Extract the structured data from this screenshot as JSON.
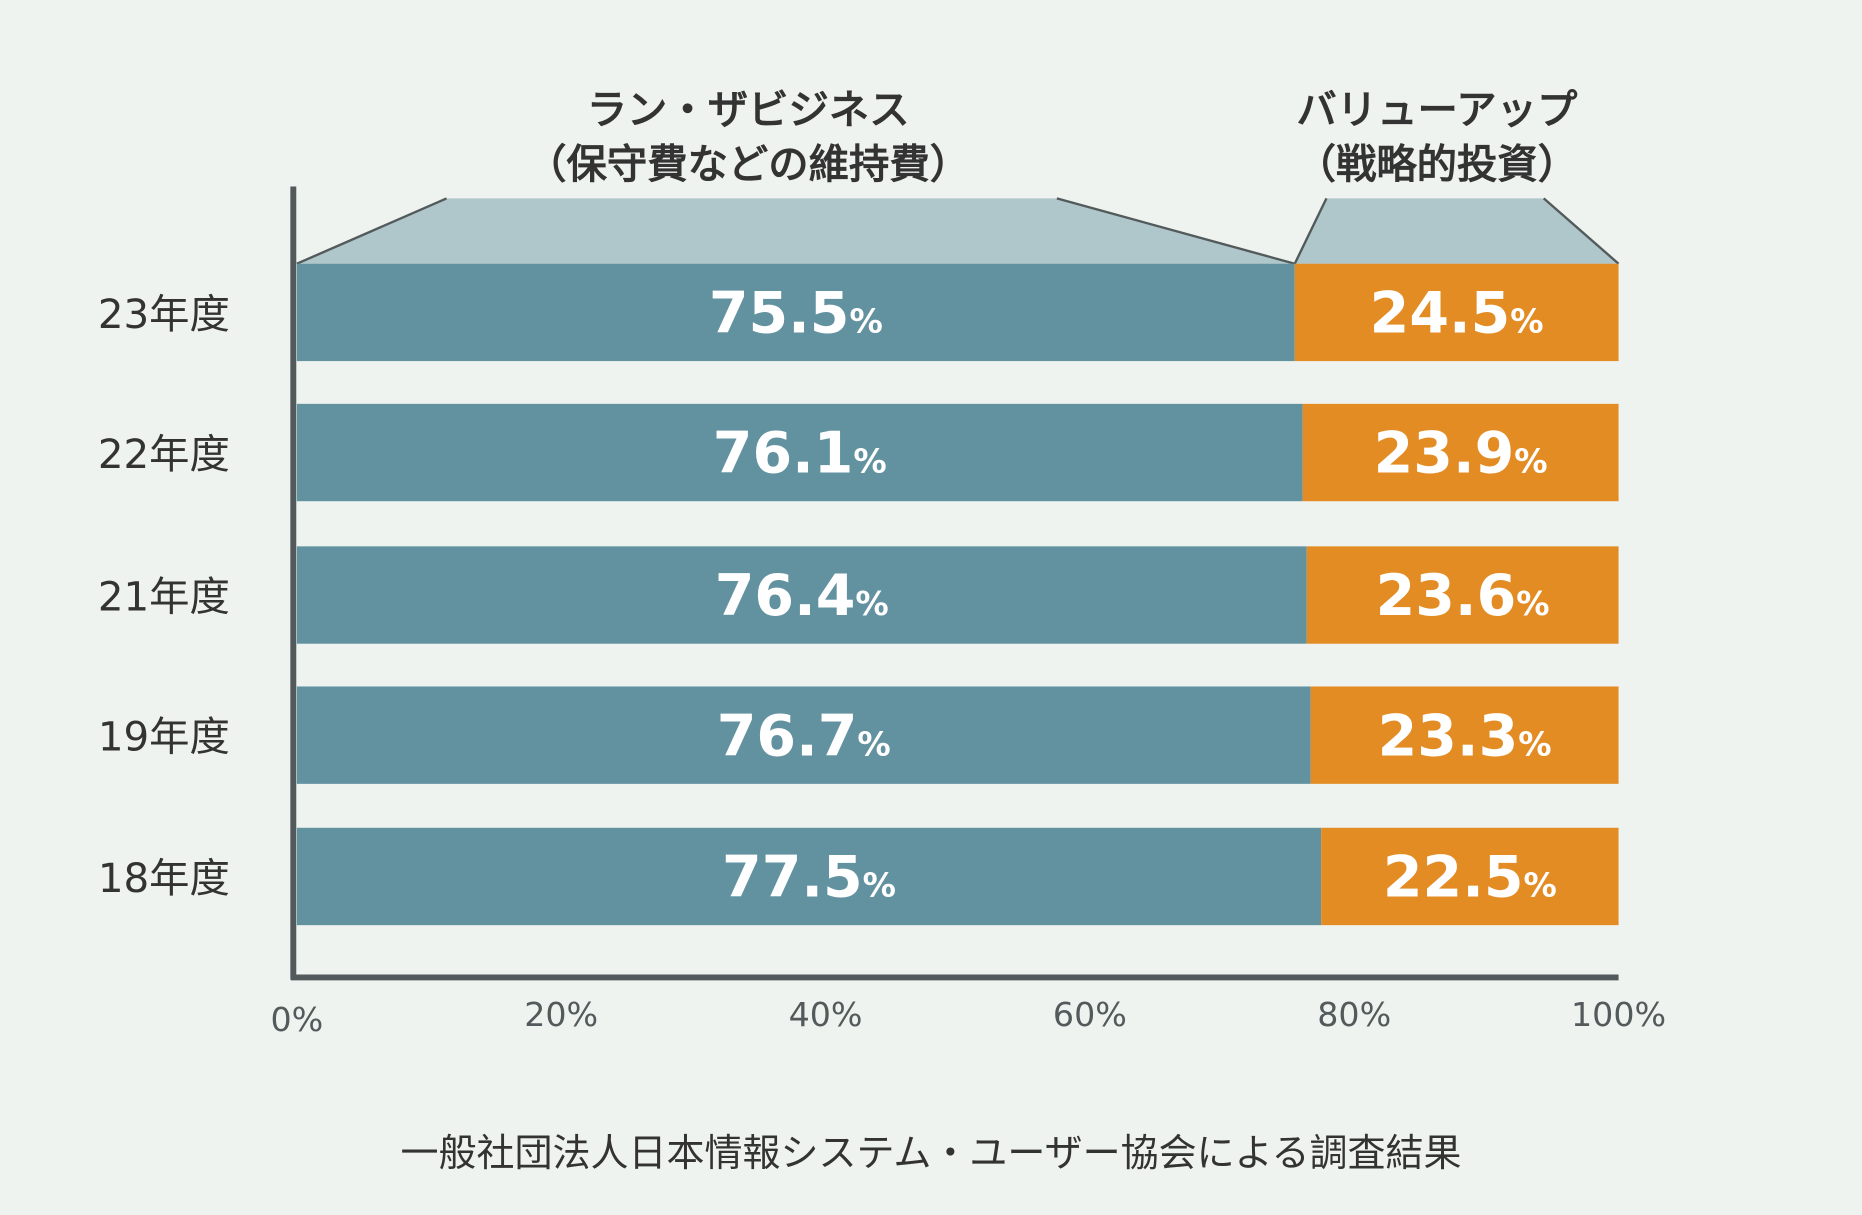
{
  "chart_data": {
    "type": "bar",
    "orientation": "horizontal",
    "stacked": true,
    "categories": [
      "23年度",
      "22年度",
      "21年度",
      "19年度",
      "18年度"
    ],
    "series": [
      {
        "name": "ラン・ザビジネス（保守費などの維持費）",
        "label_line1": "ラン・ザビジネス",
        "label_line2": "（保守費などの維持費）",
        "values": [
          75.5,
          76.1,
          76.4,
          76.7,
          77.5
        ],
        "color": "#6292a0"
      },
      {
        "name": "バリューアップ（戦略的投資）",
        "label_line1": "バリューアップ",
        "label_line2": "（戦略的投資）",
        "values": [
          24.5,
          23.9,
          23.6,
          23.3,
          22.5
        ],
        "color": "#e38c24"
      }
    ],
    "value_suffix": "%",
    "xlim": [
      0,
      100
    ],
    "xticks": [
      "0%",
      "20%",
      "40%",
      "60%",
      "80%",
      "100%"
    ],
    "bracket_color": "#afc6ca",
    "grid": false,
    "legend": "top",
    "source": "一般社団法人日本情報システム・ユーザー協会による調査結果"
  }
}
